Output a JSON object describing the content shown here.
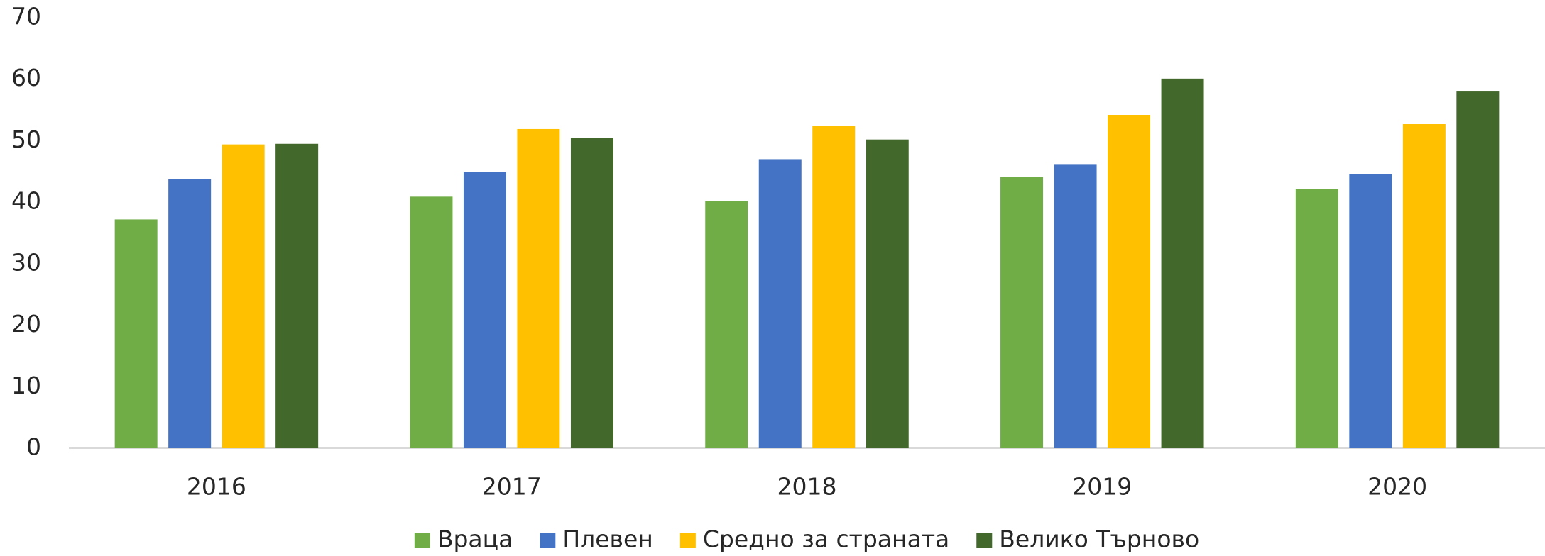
{
  "chart_data": {
    "type": "bar",
    "categories": [
      "2016",
      "2017",
      "2018",
      "2019",
      "2020"
    ],
    "series": [
      {
        "name": "Враца",
        "color": "#70ad47",
        "values": [
          37.2,
          40.9,
          40.2,
          44.1,
          42.1
        ]
      },
      {
        "name": "Плевен",
        "color": "#4472c4",
        "values": [
          43.8,
          44.9,
          47.0,
          46.2,
          44.6
        ]
      },
      {
        "name": "Средно за страната",
        "color": "#ffc000",
        "values": [
          49.4,
          51.9,
          52.4,
          54.2,
          52.7
        ]
      },
      {
        "name": "Велико Търново",
        "color": "#43682b",
        "values": [
          49.5,
          50.5,
          50.2,
          60.1,
          58.0
        ]
      }
    ],
    "ylim": [
      0,
      70
    ],
    "yticks": [
      0,
      10,
      20,
      30,
      40,
      50,
      60,
      70
    ],
    "grid": false,
    "legend": "bottom"
  }
}
